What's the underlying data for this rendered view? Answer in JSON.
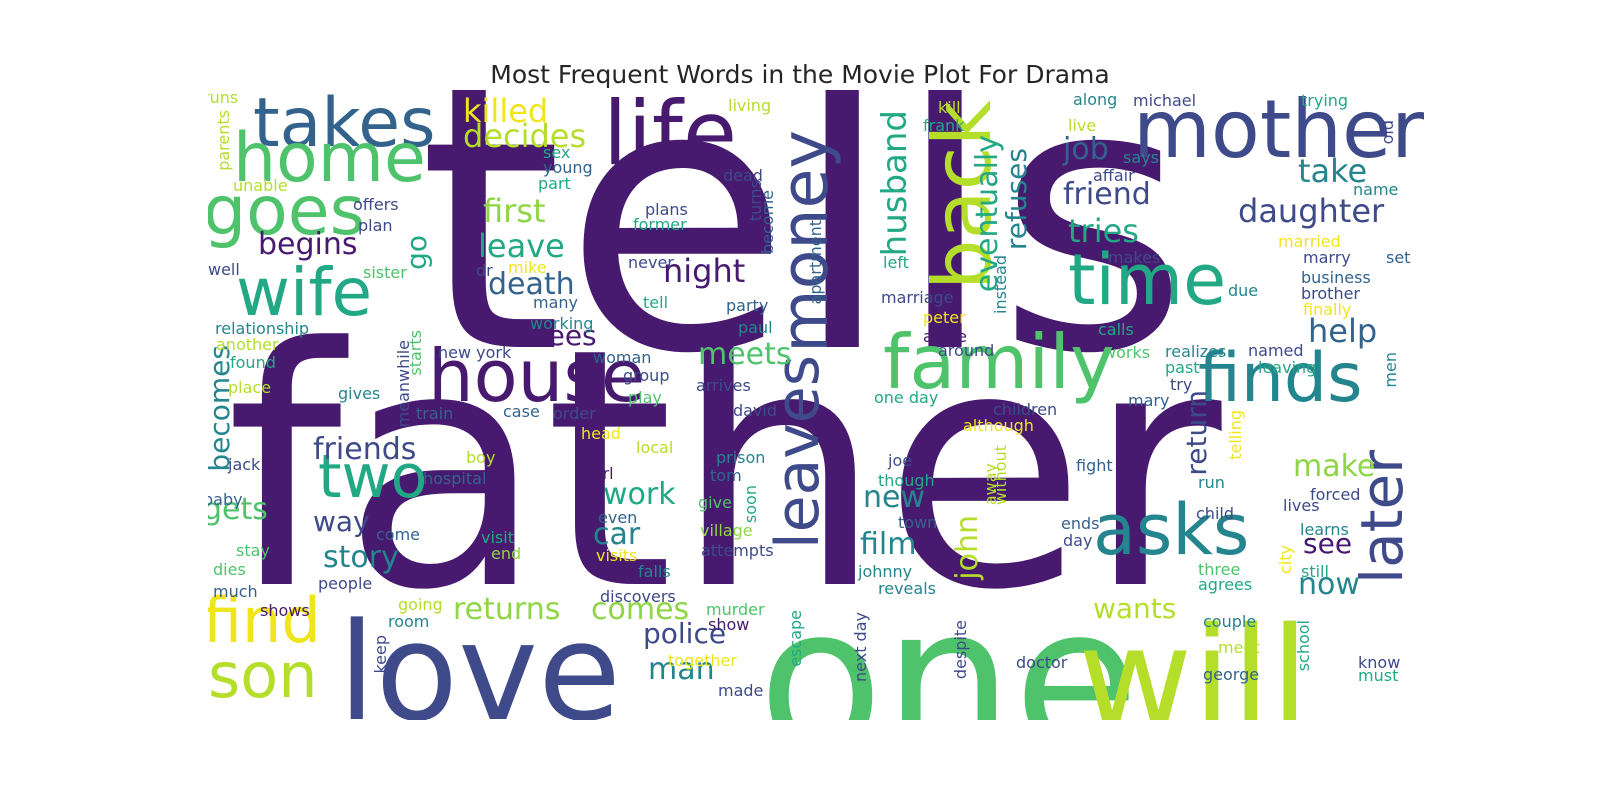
{
  "title": "Most Frequent Words in the Movie Plot For Drama",
  "colors": {
    "deep_purple": "#471a6f",
    "indigo": "#3e4a89",
    "steel_blue": "#33638d",
    "teal": "#25858e",
    "sea_green": "#22a884",
    "green": "#4ec36b",
    "lime": "#8ed645",
    "yellow_green": "#b5de2b",
    "yellow": "#f0e51d"
  },
  "words": [
    {
      "text": "tells",
      "color": "deep_purple"
    },
    {
      "text": "father",
      "color": "deep_purple"
    },
    {
      "text": "one",
      "color": "green"
    },
    {
      "text": "will",
      "color": "yellow_green"
    },
    {
      "text": "love",
      "color": "indigo"
    },
    {
      "text": "life",
      "color": "deep_purple"
    },
    {
      "text": "mother",
      "color": "indigo"
    },
    {
      "text": "takes",
      "color": "steel_blue"
    },
    {
      "text": "home",
      "color": "green"
    },
    {
      "text": "goes",
      "color": "green"
    },
    {
      "text": "wife",
      "color": "sea_green"
    },
    {
      "text": "back",
      "color": "yellow_green"
    },
    {
      "text": "money",
      "color": "indigo"
    },
    {
      "text": "family",
      "color": "green"
    },
    {
      "text": "house",
      "color": "deep_purple"
    },
    {
      "text": "time",
      "color": "sea_green"
    },
    {
      "text": "finds",
      "color": "teal"
    },
    {
      "text": "asks",
      "color": "teal"
    },
    {
      "text": "leaves",
      "color": "indigo"
    },
    {
      "text": "later",
      "color": "indigo"
    },
    {
      "text": "two",
      "color": "sea_green"
    },
    {
      "text": "find",
      "color": "yellow"
    },
    {
      "text": "son",
      "color": "yellow_green"
    },
    {
      "text": "killed",
      "color": "yellow"
    },
    {
      "text": "decides",
      "color": "yellow_green"
    },
    {
      "text": "husband",
      "color": "sea_green"
    },
    {
      "text": "eventually",
      "color": "sea_green"
    },
    {
      "text": "refuses",
      "color": "teal"
    },
    {
      "text": "job",
      "color": "steel_blue"
    },
    {
      "text": "friend",
      "color": "indigo"
    },
    {
      "text": "take",
      "color": "teal"
    },
    {
      "text": "daughter",
      "color": "indigo"
    },
    {
      "text": "tries",
      "color": "sea_green"
    },
    {
      "text": "first",
      "color": "lime"
    },
    {
      "text": "leave",
      "color": "sea_green"
    },
    {
      "text": "begins",
      "color": "deep_purple"
    },
    {
      "text": "night",
      "color": "deep_purple"
    },
    {
      "text": "death",
      "color": "steel_blue"
    },
    {
      "text": "go",
      "color": "sea_green"
    },
    {
      "text": "help",
      "color": "steel_blue"
    },
    {
      "text": "sees",
      "color": "deep_purple"
    },
    {
      "text": "meets",
      "color": "green"
    },
    {
      "text": "friends",
      "color": "indigo"
    },
    {
      "text": "becomes",
      "color": "teal"
    },
    {
      "text": "work",
      "color": "sea_green"
    },
    {
      "text": "make",
      "color": "lime"
    },
    {
      "text": "new",
      "color": "teal"
    },
    {
      "text": "film",
      "color": "teal"
    },
    {
      "text": "john",
      "color": "yellow_green"
    },
    {
      "text": "return",
      "color": "indigo"
    },
    {
      "text": "gets",
      "color": "green"
    },
    {
      "text": "way",
      "color": "indigo"
    },
    {
      "text": "car",
      "color": "teal"
    },
    {
      "text": "story",
      "color": "teal"
    },
    {
      "text": "see",
      "color": "deep_purple"
    },
    {
      "text": "now",
      "color": "teal"
    },
    {
      "text": "returns",
      "color": "lime"
    },
    {
      "text": "comes",
      "color": "lime"
    },
    {
      "text": "police",
      "color": "indigo"
    },
    {
      "text": "wants",
      "color": "yellow_green"
    },
    {
      "text": "man",
      "color": "teal"
    },
    {
      "text": "runs",
      "color": "yellow_green"
    },
    {
      "text": "living",
      "color": "yellow_green"
    },
    {
      "text": "kill",
      "color": "yellow_green"
    },
    {
      "text": "along",
      "color": "teal"
    },
    {
      "text": "michael",
      "color": "indigo"
    },
    {
      "text": "trying",
      "color": "sea_green"
    },
    {
      "text": "parents",
      "color": "yellow_green"
    },
    {
      "text": "frank",
      "color": "sea_green"
    },
    {
      "text": "live",
      "color": "yellow_green"
    },
    {
      "text": "old",
      "color": "indigo"
    },
    {
      "text": "sex",
      "color": "sea_green"
    },
    {
      "text": "says",
      "color": "teal"
    },
    {
      "text": "young",
      "color": "steel_blue"
    },
    {
      "text": "affair",
      "color": "indigo"
    },
    {
      "text": "name",
      "color": "teal"
    },
    {
      "text": "unable",
      "color": "yellow_green"
    },
    {
      "text": "part",
      "color": "sea_green"
    },
    {
      "text": "dead",
      "color": "indigo"
    },
    {
      "text": "offers",
      "color": "indigo"
    },
    {
      "text": "plans",
      "color": "indigo"
    },
    {
      "text": "turns",
      "color": "indigo"
    },
    {
      "text": "become",
      "color": "steel_blue"
    },
    {
      "text": "former",
      "color": "sea_green"
    },
    {
      "text": "plan",
      "color": "indigo"
    },
    {
      "text": "married",
      "color": "yellow"
    },
    {
      "text": "apartment",
      "color": "steel_blue"
    },
    {
      "text": "makes",
      "color": "indigo"
    },
    {
      "text": "marry",
      "color": "indigo"
    },
    {
      "text": "set",
      "color": "steel_blue"
    },
    {
      "text": "instead",
      "color": "teal"
    },
    {
      "text": "left",
      "color": "sea_green"
    },
    {
      "text": "well",
      "color": "indigo"
    },
    {
      "text": "sister",
      "color": "green"
    },
    {
      "text": "dr",
      "color": "indigo"
    },
    {
      "text": "mike",
      "color": "yellow"
    },
    {
      "text": "never",
      "color": "indigo"
    },
    {
      "text": "business",
      "color": "steel_blue"
    },
    {
      "text": "due",
      "color": "teal"
    },
    {
      "text": "brother",
      "color": "indigo"
    },
    {
      "text": "many",
      "color": "steel_blue"
    },
    {
      "text": "tell",
      "color": "sea_green"
    },
    {
      "text": "party",
      "color": "steel_blue"
    },
    {
      "text": "marriage",
      "color": "indigo"
    },
    {
      "text": "peter",
      "color": "yellow"
    },
    {
      "text": "finally",
      "color": "yellow"
    },
    {
      "text": "calls",
      "color": "sea_green"
    },
    {
      "text": "working",
      "color": "teal"
    },
    {
      "text": "paul",
      "color": "teal"
    },
    {
      "text": "alone",
      "color": "deep_purple"
    },
    {
      "text": "relationship",
      "color": "teal"
    },
    {
      "text": "another",
      "color": "yellow_green"
    },
    {
      "text": "around",
      "color": "indigo"
    },
    {
      "text": "works",
      "color": "green"
    },
    {
      "text": "realizes",
      "color": "teal"
    },
    {
      "text": "named",
      "color": "indigo"
    },
    {
      "text": "found",
      "color": "sea_green"
    },
    {
      "text": "new york",
      "color": "indigo"
    },
    {
      "text": "starts",
      "color": "green"
    },
    {
      "text": "woman",
      "color": "steel_blue"
    },
    {
      "text": "past",
      "color": "sea_green"
    },
    {
      "text": "leaving",
      "color": "sea_green"
    },
    {
      "text": "men",
      "color": "teal"
    },
    {
      "text": "place",
      "color": "yellow_green"
    },
    {
      "text": "group",
      "color": "indigo"
    },
    {
      "text": "arrives",
      "color": "indigo"
    },
    {
      "text": "try",
      "color": "indigo"
    },
    {
      "text": "meanwhile",
      "color": "indigo"
    },
    {
      "text": "gives",
      "color": "teal"
    },
    {
      "text": "play",
      "color": "green"
    },
    {
      "text": "mary",
      "color": "steel_blue"
    },
    {
      "text": "one day",
      "color": "sea_green"
    },
    {
      "text": "train",
      "color": "steel_blue"
    },
    {
      "text": "case",
      "color": "steel_blue"
    },
    {
      "text": "order",
      "color": "indigo"
    },
    {
      "text": "david",
      "color": "indigo"
    },
    {
      "text": "children",
      "color": "indigo"
    },
    {
      "text": "although",
      "color": "yellow"
    },
    {
      "text": "head",
      "color": "yellow"
    },
    {
      "text": "telling",
      "color": "yellow"
    },
    {
      "text": "local",
      "color": "yellow_green"
    },
    {
      "text": "jack",
      "color": "indigo"
    },
    {
      "text": "boy",
      "color": "yellow_green"
    },
    {
      "text": "prison",
      "color": "teal"
    },
    {
      "text": "joe",
      "color": "indigo"
    },
    {
      "text": "fight",
      "color": "steel_blue"
    },
    {
      "text": "hospital",
      "color": "steel_blue"
    },
    {
      "text": "girl",
      "color": "deep_purple"
    },
    {
      "text": "tom",
      "color": "steel_blue"
    },
    {
      "text": "though",
      "color": "sea_green"
    },
    {
      "text": "away",
      "color": "yellow_green"
    },
    {
      "text": "run",
      "color": "teal"
    },
    {
      "text": "without",
      "color": "yellow_green"
    },
    {
      "text": "soon",
      "color": "sea_green"
    },
    {
      "text": "baby",
      "color": "steel_blue"
    },
    {
      "text": "forced",
      "color": "indigo"
    },
    {
      "text": "give",
      "color": "green"
    },
    {
      "text": "lives",
      "color": "indigo"
    },
    {
      "text": "even",
      "color": "steel_blue"
    },
    {
      "text": "town",
      "color": "steel_blue"
    },
    {
      "text": "child",
      "color": "indigo"
    },
    {
      "text": "come",
      "color": "steel_blue"
    },
    {
      "text": "visit",
      "color": "sea_green"
    },
    {
      "text": "village",
      "color": "lime"
    },
    {
      "text": "ends",
      "color": "steel_blue"
    },
    {
      "text": "learns",
      "color": "teal"
    },
    {
      "text": "stay",
      "color": "green"
    },
    {
      "text": "day",
      "color": "indigo"
    },
    {
      "text": "end",
      "color": "lime"
    },
    {
      "text": "visits",
      "color": "yellow"
    },
    {
      "text": "attempts",
      "color": "indigo"
    },
    {
      "text": "city",
      "color": "yellow"
    },
    {
      "text": "dies",
      "color": "green"
    },
    {
      "text": "falls",
      "color": "teal"
    },
    {
      "text": "johnny",
      "color": "teal"
    },
    {
      "text": "three",
      "color": "green"
    },
    {
      "text": "still",
      "color": "sea_green"
    },
    {
      "text": "people",
      "color": "indigo"
    },
    {
      "text": "agrees",
      "color": "sea_green"
    },
    {
      "text": "much",
      "color": "steel_blue"
    },
    {
      "text": "reveals",
      "color": "teal"
    },
    {
      "text": "discovers",
      "color": "indigo"
    },
    {
      "text": "shows",
      "color": "deep_purple"
    },
    {
      "text": "going",
      "color": "yellow_green"
    },
    {
      "text": "murder",
      "color": "green"
    },
    {
      "text": "room",
      "color": "teal"
    },
    {
      "text": "show",
      "color": "deep_purple"
    },
    {
      "text": "couple",
      "color": "teal"
    },
    {
      "text": "school",
      "color": "sea_green"
    },
    {
      "text": "escape",
      "color": "sea_green"
    },
    {
      "text": "next day",
      "color": "indigo"
    },
    {
      "text": "keep",
      "color": "indigo"
    },
    {
      "text": "despite",
      "color": "indigo"
    },
    {
      "text": "meet",
      "color": "yellow_green"
    },
    {
      "text": "together",
      "color": "yellow"
    },
    {
      "text": "doctor",
      "color": "indigo"
    },
    {
      "text": "know",
      "color": "indigo"
    },
    {
      "text": "george",
      "color": "steel_blue"
    },
    {
      "text": "must",
      "color": "sea_green"
    },
    {
      "text": "made",
      "color": "indigo"
    }
  ]
}
